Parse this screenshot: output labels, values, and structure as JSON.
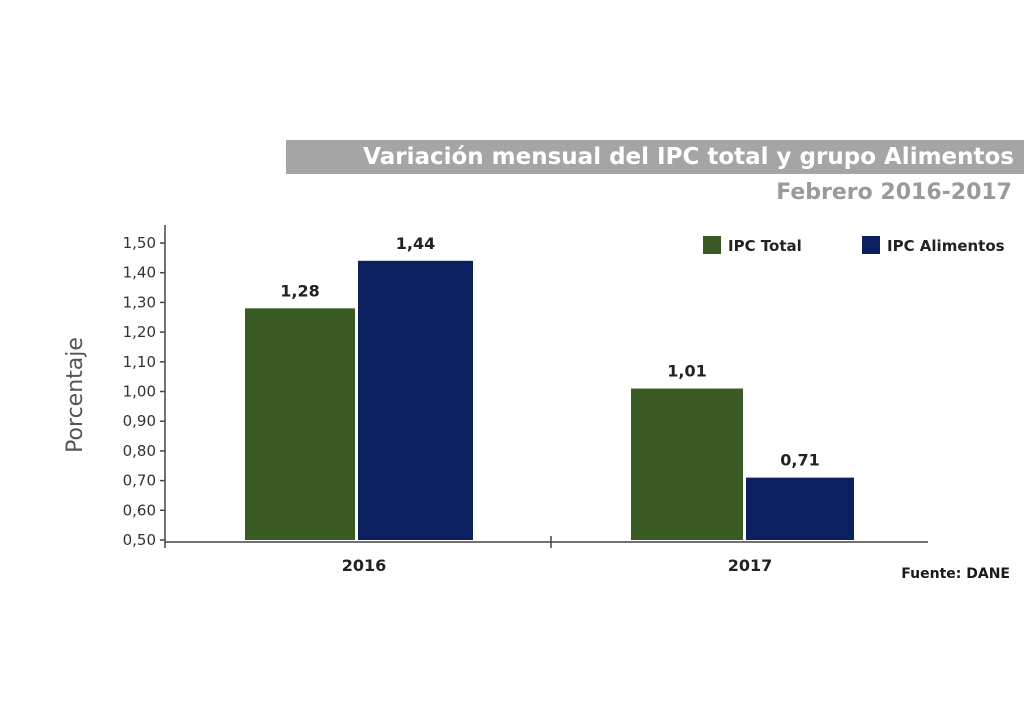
{
  "chart_data": {
    "type": "bar",
    "title": "Variación mensual del IPC total y grupo Alimentos",
    "subtitle": "Febrero 2016-2017",
    "ylabel": "Porcentaje",
    "xlabel": "",
    "categories": [
      "2016",
      "2017"
    ],
    "series": [
      {
        "name": "IPC Total",
        "color": "#3a5a24",
        "values": [
          1.28,
          1.01
        ],
        "labels": [
          "1,28",
          "1,01"
        ]
      },
      {
        "name": "IPC Alimentos",
        "color": "#0b2060",
        "values": [
          1.44,
          0.71
        ],
        "labels": [
          "1,44",
          "0,71"
        ]
      }
    ],
    "ylim": [
      0.5,
      1.5
    ],
    "yticks": [
      0.5,
      0.6,
      0.7,
      0.8,
      0.9,
      1.0,
      1.1,
      1.2,
      1.3,
      1.4,
      1.5
    ],
    "ytick_labels": [
      "0,50",
      "0,60",
      "0,70",
      "0,80",
      "0,90",
      "1,00",
      "1,10",
      "1,20",
      "1,30",
      "1,40",
      "1,50"
    ],
    "legend_position": "top-right",
    "grid": false,
    "source": "Fuente: DANE"
  }
}
